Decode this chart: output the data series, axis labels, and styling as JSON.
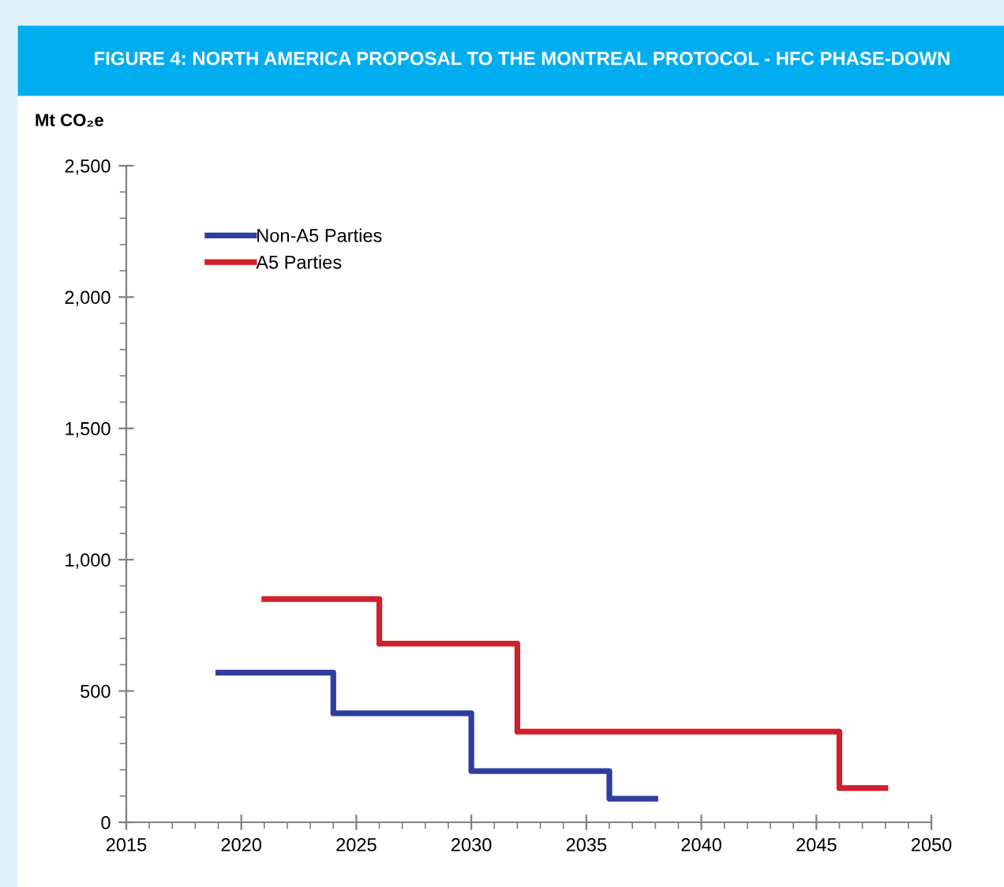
{
  "chart_data": {
    "type": "step",
    "title": "FIGURE 4: NORTH AMERICA PROPOSAL TO THE MONTREAL PROTOCOL - HFC PHASE-DOWN",
    "ylabel": "Mt CO₂e",
    "series": [
      {
        "name": "Non-A5 Parties",
        "color": "#2e3d9e",
        "x": [
          2019,
          2024,
          2030,
          2036,
          2038
        ],
        "values": [
          570,
          415,
          195,
          90,
          90
        ]
      },
      {
        "name": "A5 Parties",
        "color": "#d0202a",
        "x": [
          2021,
          2026,
          2032,
          2046,
          2048
        ],
        "values": [
          850,
          680,
          345,
          130,
          130
        ]
      }
    ],
    "xlim": [
      2015,
      2050
    ],
    "xticks": [
      2015,
      2020,
      2025,
      2030,
      2035,
      2040,
      2045,
      2050
    ],
    "ylim": [
      0,
      2500
    ],
    "yticks": [
      0,
      {
        "value": 500,
        "label": "500"
      },
      {
        "value": 1000,
        "label": "1,000"
      },
      {
        "value": 1500,
        "label": "1,500"
      },
      {
        "value": 2000,
        "label": "2,000"
      },
      {
        "value": 2500,
        "label": "2,500"
      }
    ],
    "grid": false,
    "legend": "top left"
  }
}
